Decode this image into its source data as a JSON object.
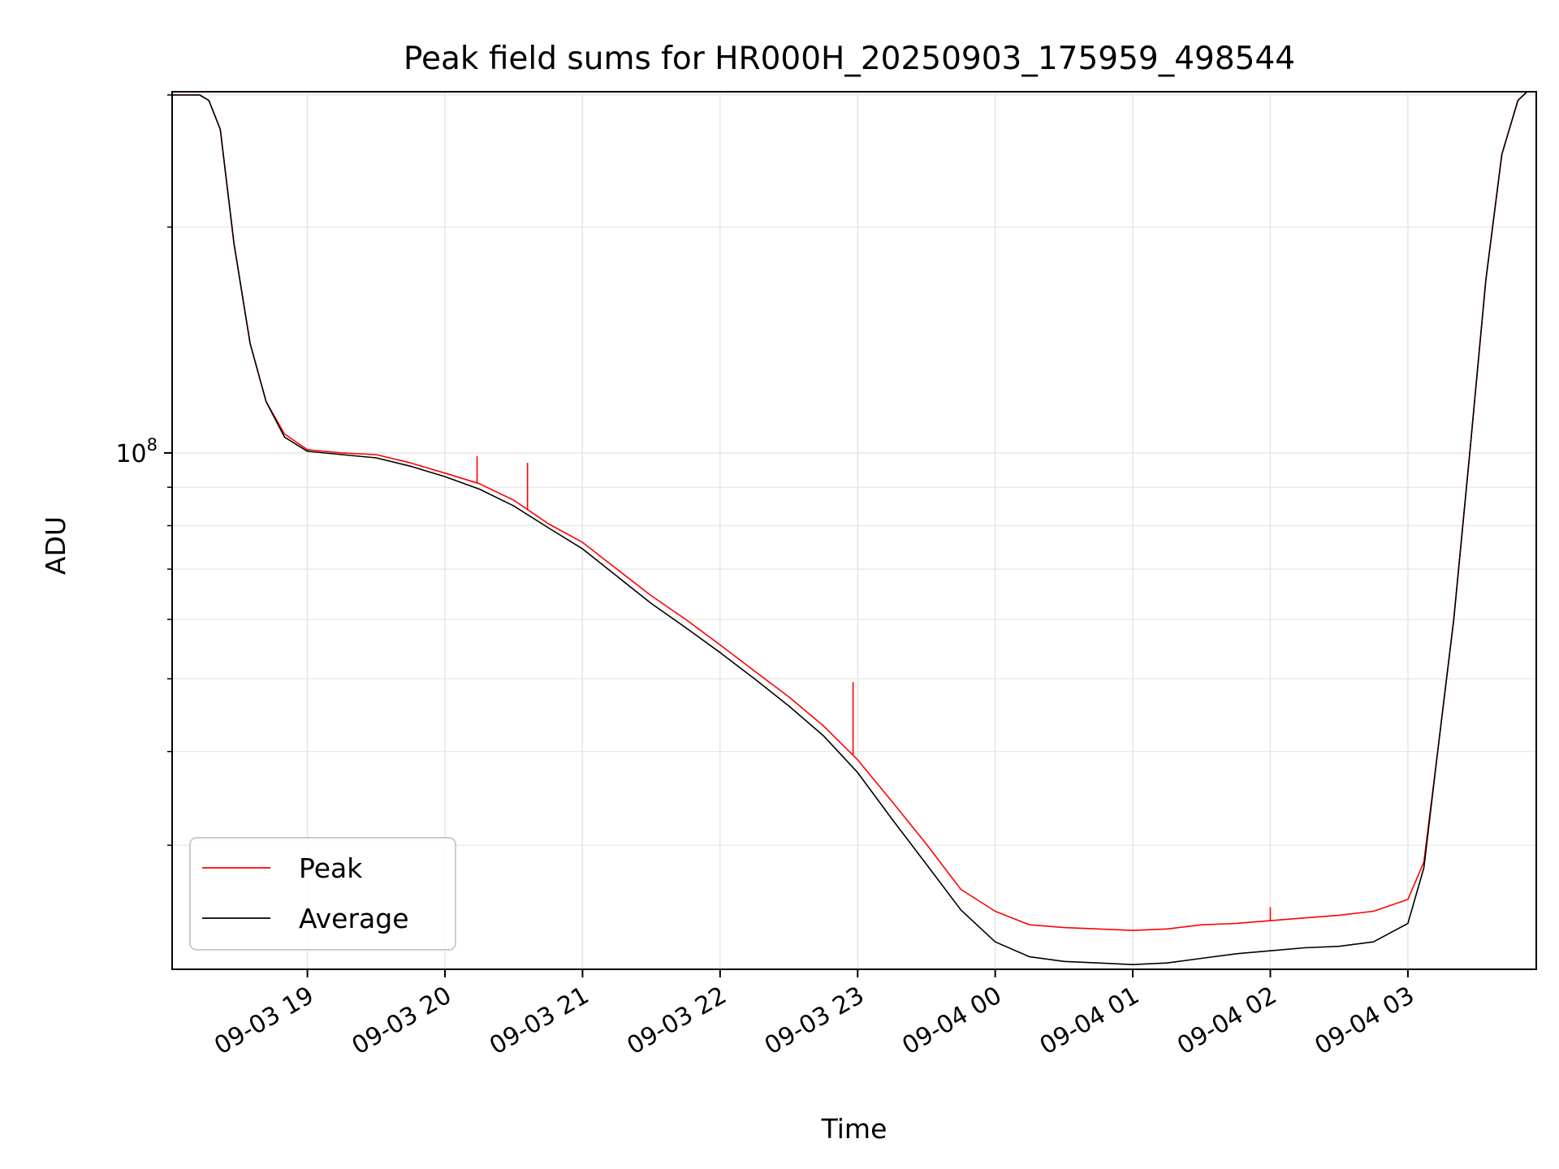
{
  "chart_data": {
    "type": "line",
    "title": "Peak field sums for HR000H_20250903_175959_498544",
    "xlabel": "Time",
    "ylabel": "ADU",
    "yscale": "log",
    "grid": true,
    "legend": {
      "location": "lower-left",
      "entries": [
        "Peak",
        "Average"
      ]
    },
    "x_ticks": [
      "09-03 19",
      "09-03 20",
      "09-03 21",
      "09-03 22",
      "09-03 23",
      "09-04 00",
      "09-04 01",
      "09-04 02",
      "09-04 03"
    ],
    "y_ticks": [
      {
        "base": "10",
        "exponent": "8",
        "value": 100000000
      }
    ],
    "xlim": [
      "2025-09-03 18:01",
      "2025-09-04 03:56"
    ],
    "ylim": [
      20500000,
      303000000
    ],
    "series": [
      {
        "name": "Peak",
        "color": "#ff0000",
        "x": [
          "2025-09-03 18:01",
          "2025-09-03 18:13",
          "2025-09-03 18:17",
          "2025-09-03 18:22",
          "2025-09-03 18:28",
          "2025-09-03 18:35",
          "2025-09-03 18:42",
          "2025-09-03 18:50",
          "2025-09-03 19:00",
          "2025-09-03 19:15",
          "2025-09-03 19:30",
          "2025-09-03 19:45",
          "2025-09-03 20:00",
          "2025-09-03 20:15",
          "2025-09-03 20:30",
          "2025-09-03 20:45",
          "2025-09-03 21:00",
          "2025-09-03 21:15",
          "2025-09-03 21:30",
          "2025-09-03 21:45",
          "2025-09-03 22:00",
          "2025-09-03 22:15",
          "2025-09-03 22:30",
          "2025-09-03 22:45",
          "2025-09-03 23:00",
          "2025-09-03 23:15",
          "2025-09-03 23:30",
          "2025-09-03 23:45",
          "2025-09-04 00:00",
          "2025-09-04 00:15",
          "2025-09-04 00:30",
          "2025-09-04 00:45",
          "2025-09-04 01:00",
          "2025-09-04 01:15",
          "2025-09-04 01:30",
          "2025-09-04 01:45",
          "2025-09-04 02:00",
          "2025-09-04 02:15",
          "2025-09-04 02:30",
          "2025-09-04 02:45",
          "2025-09-04 03:00",
          "2025-09-04 03:07",
          "2025-09-04 03:13",
          "2025-09-04 03:20",
          "2025-09-04 03:27",
          "2025-09-04 03:34",
          "2025-09-04 03:41",
          "2025-09-04 03:48",
          "2025-09-04 03:52"
        ],
        "y": [
          300000000,
          300000000,
          295000000,
          270000000,
          190000000,
          140000000,
          117000000,
          106000000,
          101000000,
          100000000,
          99500000,
          97000000,
          94000000,
          91000000,
          86500000,
          80500000,
          76000000,
          70000000,
          64500000,
          60000000,
          55500000,
          51200000,
          47300000,
          43300000,
          39000000,
          34300000,
          30100000,
          26200000,
          24500000,
          23500000,
          23300000,
          23200000,
          23100000,
          23200000,
          23500000,
          23600000,
          23800000,
          24000000,
          24200000,
          24500000,
          25400000,
          28500000,
          40000000,
          60000000,
          100000000,
          170000000,
          250000000,
          295000000,
          303000000
        ]
      },
      {
        "name": "Average",
        "color": "#000000",
        "x": [
          "2025-09-03 18:01",
          "2025-09-03 18:13",
          "2025-09-03 18:17",
          "2025-09-03 18:22",
          "2025-09-03 18:28",
          "2025-09-03 18:35",
          "2025-09-03 18:42",
          "2025-09-03 18:50",
          "2025-09-03 19:00",
          "2025-09-03 19:15",
          "2025-09-03 19:30",
          "2025-09-03 19:45",
          "2025-09-03 20:00",
          "2025-09-03 20:15",
          "2025-09-03 20:30",
          "2025-09-03 20:45",
          "2025-09-03 21:00",
          "2025-09-03 21:15",
          "2025-09-03 21:30",
          "2025-09-03 21:45",
          "2025-09-03 22:00",
          "2025-09-03 22:15",
          "2025-09-03 22:30",
          "2025-09-03 22:45",
          "2025-09-03 23:00",
          "2025-09-03 23:15",
          "2025-09-03 23:30",
          "2025-09-03 23:45",
          "2025-09-04 00:00",
          "2025-09-04 00:15",
          "2025-09-04 00:30",
          "2025-09-04 00:45",
          "2025-09-04 01:00",
          "2025-09-04 01:15",
          "2025-09-04 01:30",
          "2025-09-04 01:45",
          "2025-09-04 02:00",
          "2025-09-04 02:15",
          "2025-09-04 02:30",
          "2025-09-04 02:45",
          "2025-09-04 03:00",
          "2025-09-04 03:07",
          "2025-09-04 03:13",
          "2025-09-04 03:20",
          "2025-09-04 03:27",
          "2025-09-04 03:34",
          "2025-09-04 03:41",
          "2025-09-04 03:48",
          "2025-09-04 03:52"
        ],
        "y": [
          300000000,
          300000000,
          295000000,
          270000000,
          190000000,
          140000000,
          117000000,
          105000000,
          100500000,
          99500000,
          98500000,
          96000000,
          93000000,
          89500000,
          85000000,
          79500000,
          74500000,
          68500000,
          63000000,
          58500000,
          54200000,
          50000000,
          46000000,
          42000000,
          37500000,
          32500000,
          28300000,
          24600000,
          22300000,
          21300000,
          21000000,
          20900000,
          20800000,
          20900000,
          21200000,
          21500000,
          21700000,
          21900000,
          22000000,
          22300000,
          23600000,
          28000000,
          40000000,
          60000000,
          100000000,
          170000000,
          250000000,
          295000000,
          303000000
        ]
      }
    ],
    "spikes": [
      {
        "series": "Peak",
        "x": "2025-09-03 20:14",
        "y": 99000000
      },
      {
        "series": "Peak",
        "x": "2025-09-03 20:36",
        "y": 97000000
      },
      {
        "series": "Peak",
        "x": "2025-09-03 22:58",
        "y": 49500000
      },
      {
        "series": "Peak",
        "x": "2025-09-04 02:00",
        "y": 24800000
      }
    ]
  }
}
